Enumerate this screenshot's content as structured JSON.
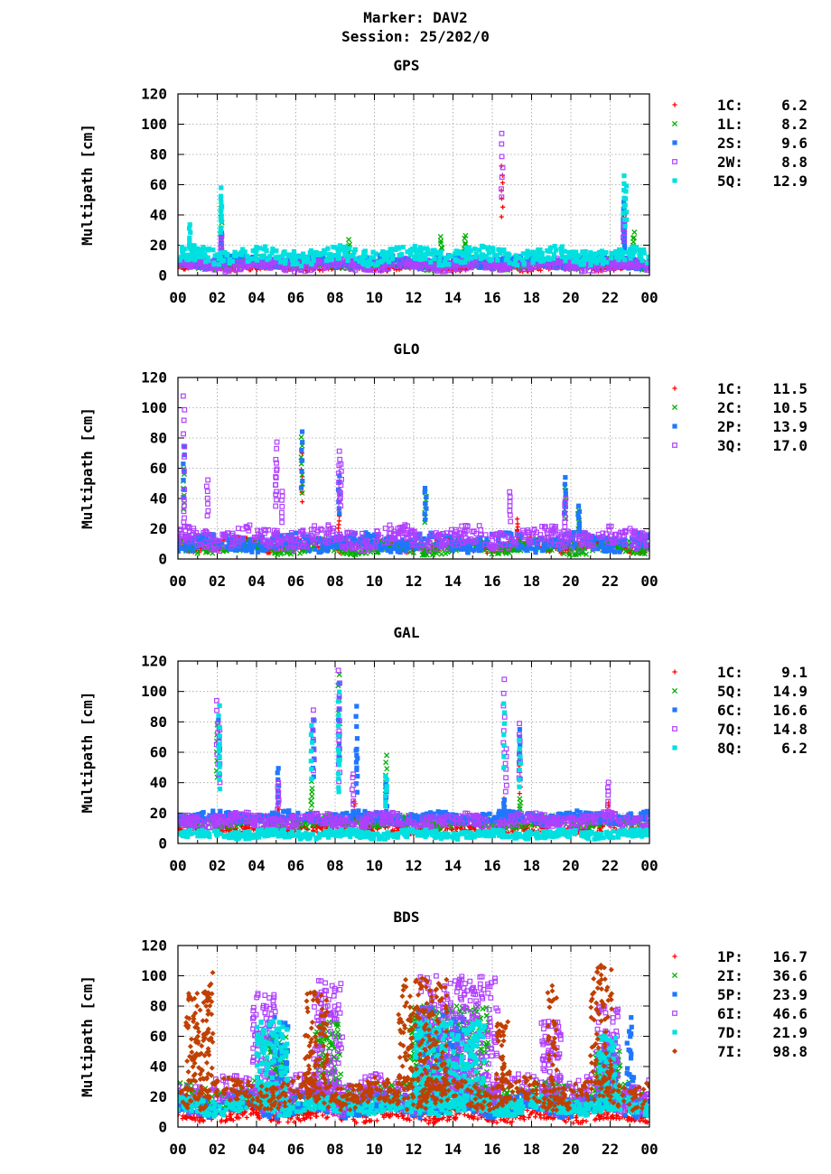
{
  "header": {
    "marker": "Marker: DAV2",
    "session": "Session: 25/202/0"
  },
  "chart_data": [
    {
      "type": "scatter",
      "title": "GPS",
      "ylabel": "Multipath [cm]",
      "xlabel": "",
      "ylim": [
        0,
        120
      ],
      "yticks": [
        "0",
        "20",
        "40",
        "60",
        "80",
        "100",
        "120"
      ],
      "xticks": [
        "00",
        "02",
        "04",
        "06",
        "08",
        "10",
        "12",
        "14",
        "16",
        "18",
        "20",
        "22",
        "00"
      ],
      "xlim": [
        0,
        24
      ],
      "grid": true,
      "legend_position": "right",
      "series": [
        {
          "name": "1C:",
          "value": "6.2",
          "color": "#ff0000",
          "marker": "plus",
          "level": 6,
          "spread": 3,
          "spikes": [
            [
              2.2,
              30
            ],
            [
              16.5,
              72
            ],
            [
              22.7,
              48
            ]
          ]
        },
        {
          "name": "1L:",
          "value": "8.2",
          "color": "#00b000",
          "marker": "cross",
          "level": 8,
          "spread": 4,
          "spikes": [
            [
              2.2,
              45
            ],
            [
              8.7,
              23
            ],
            [
              13.4,
              25
            ],
            [
              14.6,
              26
            ],
            [
              22.7,
              42
            ],
            [
              23.2,
              28
            ]
          ]
        },
        {
          "name": "2S:",
          "value": "9.6",
          "color": "#1f77ff",
          "marker": "square",
          "level": 9,
          "spread": 4,
          "spikes": [
            [
              2.2,
              28
            ],
            [
              22.7,
              48
            ],
            [
              22.7,
              33
            ]
          ]
        },
        {
          "name": "2W:",
          "value": "8.8",
          "color": "#b040ff",
          "marker": "open-square",
          "level": 7,
          "spread": 4,
          "spikes": [
            [
              2.2,
              26
            ],
            [
              16.5,
              93
            ],
            [
              22.7,
              40
            ]
          ]
        },
        {
          "name": "5Q:",
          "value": "12.9",
          "color": "#00e0e0",
          "marker": "square",
          "level": 13,
          "spread": 6,
          "spikes": [
            [
              0.6,
              33
            ],
            [
              2.2,
              57
            ],
            [
              2.2,
              50
            ],
            [
              22.7,
              66
            ],
            [
              22.8,
              60
            ]
          ]
        }
      ]
    },
    {
      "type": "scatter",
      "title": "GLO",
      "ylabel": "Multipath [cm]",
      "xlabel": "",
      "ylim": [
        0,
        120
      ],
      "yticks": [
        "0",
        "20",
        "40",
        "60",
        "80",
        "100",
        "120"
      ],
      "xticks": [
        "00",
        "02",
        "04",
        "06",
        "08",
        "10",
        "12",
        "14",
        "16",
        "18",
        "20",
        "22",
        "00"
      ],
      "xlim": [
        0,
        24
      ],
      "grid": true,
      "legend_position": "right",
      "series": [
        {
          "name": "1C:",
          "value": "11.5",
          "color": "#ff0000",
          "marker": "plus",
          "level": 9,
          "spread": 5,
          "spikes": [
            [
              6.3,
              70
            ],
            [
              8.2,
              33
            ],
            [
              17.3,
              26
            ]
          ]
        },
        {
          "name": "2C:",
          "value": "10.5",
          "color": "#00b000",
          "marker": "cross",
          "level": 8,
          "spread": 5,
          "spikes": [
            [
              0.3,
              60
            ],
            [
              6.3,
              80
            ],
            [
              12.6,
              45
            ],
            [
              19.7,
              48
            ],
            [
              20.4,
              32
            ]
          ]
        },
        {
          "name": "2P:",
          "value": "13.9",
          "color": "#1f77ff",
          "marker": "square",
          "level": 11,
          "spread": 6,
          "spikes": [
            [
              0.3,
              74
            ],
            [
              6.3,
              84
            ],
            [
              8.2,
              55
            ],
            [
              12.6,
              47
            ],
            [
              19.7,
              54
            ],
            [
              20.4,
              35
            ]
          ]
        },
        {
          "name": "3Q:",
          "value": "17.0",
          "color": "#b040ff",
          "marker": "open-square",
          "level": 14,
          "spread": 8,
          "spikes": [
            [
              0.3,
              107
            ],
            [
              0.3,
              45
            ],
            [
              1.5,
              52
            ],
            [
              5.0,
              78
            ],
            [
              5.0,
              64
            ],
            [
              5.3,
              45
            ],
            [
              8.2,
              72
            ],
            [
              8.3,
              63
            ],
            [
              16.9,
              45
            ],
            [
              19.7,
              40
            ]
          ]
        }
      ]
    },
    {
      "type": "scatter",
      "title": "GAL",
      "ylabel": "Multipath [cm]",
      "xlabel": "",
      "ylim": [
        0,
        120
      ],
      "yticks": [
        "0",
        "20",
        "40",
        "60",
        "80",
        "100",
        "120"
      ],
      "xticks": [
        "00",
        "02",
        "04",
        "06",
        "08",
        "10",
        "12",
        "14",
        "16",
        "18",
        "20",
        "22",
        "00"
      ],
      "xlim": [
        0,
        24
      ],
      "grid": true,
      "legend_position": "right",
      "series": [
        {
          "name": "1C:",
          "value": "9.1",
          "color": "#ff0000",
          "marker": "plus",
          "level": 9,
          "spread": 3,
          "spikes": [
            [
              5.1,
              26
            ],
            [
              9.0,
              28
            ],
            [
              16.6,
              30
            ],
            [
              17.4,
              60
            ],
            [
              21.9,
              26
            ]
          ]
        },
        {
          "name": "5Q:",
          "value": "14.9",
          "color": "#00b000",
          "marker": "cross",
          "level": 14,
          "spread": 4,
          "spikes": [
            [
              2.0,
              78
            ],
            [
              6.8,
              40
            ],
            [
              8.2,
              112
            ],
            [
              10.6,
              57
            ],
            [
              17.4,
              30
            ]
          ]
        },
        {
          "name": "6C:",
          "value": "16.6",
          "color": "#1f77ff",
          "marker": "square",
          "level": 17,
          "spread": 4,
          "spikes": [
            [
              2.1,
              82
            ],
            [
              5.1,
              50
            ],
            [
              6.9,
              80
            ],
            [
              8.2,
              104
            ],
            [
              9.1,
              90
            ],
            [
              9.1,
              62
            ],
            [
              10.6,
              40
            ],
            [
              16.6,
              28
            ],
            [
              17.4,
              76
            ]
          ]
        },
        {
          "name": "7Q:",
          "value": "14.8",
          "color": "#b040ff",
          "marker": "open-square",
          "level": 15,
          "spread": 5,
          "spikes": [
            [
              2.0,
              94
            ],
            [
              2.1,
              74
            ],
            [
              5.1,
              40
            ],
            [
              6.9,
              88
            ],
            [
              8.2,
              114
            ],
            [
              8.2,
              74
            ],
            [
              8.9,
              46
            ],
            [
              16.6,
              107
            ],
            [
              16.7,
              62
            ],
            [
              17.4,
              78
            ],
            [
              21.9,
              40
            ]
          ]
        },
        {
          "name": "8Q:",
          "value": "6.2",
          "color": "#00e0e0",
          "marker": "square",
          "level": 6,
          "spread": 3,
          "spikes": [
            [
              2.1,
              90
            ],
            [
              2.1,
              66
            ],
            [
              6.8,
              78
            ],
            [
              8.2,
              100
            ],
            [
              8.2,
              60
            ],
            [
              10.6,
              45
            ],
            [
              16.6,
              92
            ],
            [
              17.4,
              68
            ]
          ]
        }
      ]
    },
    {
      "type": "scatter",
      "title": "BDS",
      "ylabel": "Multipath [cm]",
      "xlabel": "",
      "ylim": [
        0,
        120
      ],
      "yticks": [
        "0",
        "20",
        "40",
        "60",
        "80",
        "100",
        "120"
      ],
      "xticks": [
        "00",
        "02",
        "04",
        "06",
        "08",
        "10",
        "12",
        "14",
        "16",
        "18",
        "20",
        "22",
        "00"
      ],
      "xlim": [
        0,
        24
      ],
      "grid": true,
      "legend_position": "right",
      "series": [
        {
          "name": "1P:",
          "value": "16.7",
          "color": "#ff0000",
          "marker": "plus",
          "level": 8,
          "spread": 5,
          "spikes": [
            [
              12.9,
              40
            ],
            [
              13.6,
              38
            ],
            [
              14.2,
              30
            ]
          ]
        },
        {
          "name": "2I:",
          "value": "36.6",
          "color": "#00b000",
          "marker": "cross",
          "level": 20,
          "spread": 10,
          "bursts": [
            [
              4.5,
              5.5,
              60
            ],
            [
              7.0,
              8.3,
              70
            ],
            [
              11.8,
              15.8,
              80
            ],
            [
              21.2,
              22.5,
              50
            ]
          ]
        },
        {
          "name": "5P:",
          "value": "23.9",
          "color": "#1f77ff",
          "marker": "square",
          "level": 15,
          "spread": 8,
          "bursts": [
            [
              4.6,
              5.6,
              75
            ],
            [
              12.2,
              14.6,
              80
            ],
            [
              21.5,
              22.3,
              55
            ],
            [
              22.8,
              23.2,
              75
            ]
          ]
        },
        {
          "name": "6I:",
          "value": "46.6",
          "color": "#b040ff",
          "marker": "open-square",
          "level": 22,
          "spread": 12,
          "bursts": [
            [
              3.8,
              5.0,
              90
            ],
            [
              6.9,
              8.4,
              100
            ],
            [
              12.3,
              16.3,
              100
            ],
            [
              18.5,
              19.5,
              70
            ],
            [
              21.3,
              22.4,
              80
            ]
          ]
        },
        {
          "name": "7D:",
          "value": "21.9",
          "color": "#00e0e0",
          "marker": "square",
          "level": 14,
          "spread": 6,
          "bursts": [
            [
              4.0,
              5.6,
              70
            ],
            [
              12.0,
              15.6,
              70
            ],
            [
              21.4,
              22.3,
              60
            ]
          ]
        },
        {
          "name": "7I:",
          "value": "98.8",
          "color": "#c04000",
          "marker": "diamond",
          "level": 22,
          "spread": 10,
          "bursts": [
            [
              0.4,
              1.6,
              90
            ],
            [
              1.3,
              1.8,
              110
            ],
            [
              6.4,
              7.6,
              90
            ],
            [
              11.2,
              13.7,
              100
            ],
            [
              16.2,
              16.9,
              70
            ],
            [
              18.8,
              19.3,
              100
            ],
            [
              21.0,
              22.1,
              110
            ]
          ]
        }
      ]
    }
  ]
}
